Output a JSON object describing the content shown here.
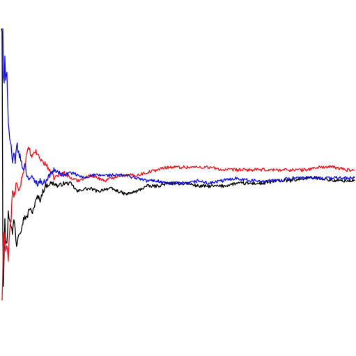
{
  "chart_data": {
    "type": "line",
    "title": "",
    "xlabel": "",
    "ylabel": "",
    "grid": false,
    "legend": "none",
    "xlim": [
      0,
      511
    ],
    "ylim": [
      -0.35,
      0.85
    ],
    "x": [
      0,
      1,
      2,
      3,
      4,
      5,
      6,
      8,
      10,
      12,
      14,
      16,
      18,
      20,
      22,
      25,
      28,
      31,
      34,
      37,
      40,
      44,
      48,
      52,
      56,
      60,
      64,
      70,
      76,
      82,
      90,
      100,
      110,
      120,
      130,
      140,
      150,
      160,
      170,
      180,
      195,
      210,
      225,
      240,
      255,
      270,
      285,
      300,
      320,
      340,
      360,
      380,
      400,
      420,
      440,
      460,
      480,
      500,
      511
    ],
    "series": [
      {
        "name": "black",
        "color": "#000000",
        "values": [
          0.8,
          0.79,
          0.05,
          -0.15,
          -0.02,
          0.1,
          0.02,
          0.0,
          0.12,
          0.1,
          0.08,
          0.04,
          0.1,
          0.06,
          0.0,
          0.05,
          0.06,
          0.09,
          0.11,
          0.1,
          0.14,
          0.12,
          0.15,
          0.18,
          0.17,
          0.2,
          0.22,
          0.23,
          0.23,
          0.22,
          0.23,
          0.23,
          0.2,
          0.21,
          0.21,
          0.2,
          0.21,
          0.21,
          0.2,
          0.19,
          0.2,
          0.22,
          0.22,
          0.23,
          0.23,
          0.23,
          0.22,
          0.22,
          0.22,
          0.23,
          0.23,
          0.23,
          0.24,
          0.24,
          0.25,
          0.25,
          0.24,
          0.24,
          0.24
        ]
      },
      {
        "name": "red",
        "color": "#e8141e",
        "values": [
          -0.2,
          -0.2,
          -0.1,
          0.05,
          0.0,
          0.05,
          -0.02,
          0.0,
          -0.05,
          0.06,
          0.1,
          0.2,
          0.18,
          0.2,
          0.24,
          0.19,
          0.23,
          0.27,
          0.3,
          0.34,
          0.36,
          0.32,
          0.35,
          0.34,
          0.32,
          0.31,
          0.3,
          0.28,
          0.25,
          0.26,
          0.27,
          0.25,
          0.24,
          0.25,
          0.26,
          0.25,
          0.24,
          0.25,
          0.26,
          0.26,
          0.26,
          0.27,
          0.28,
          0.29,
          0.29,
          0.29,
          0.29,
          0.29,
          0.28,
          0.28,
          0.28,
          0.28,
          0.28,
          0.28,
          0.28,
          0.29,
          0.29,
          0.28,
          0.28
        ]
      },
      {
        "name": "blue",
        "color": "#0d0dd8",
        "values": [
          0.8,
          0.8,
          0.8,
          0.62,
          0.6,
          0.7,
          0.61,
          0.65,
          0.45,
          0.4,
          0.36,
          0.3,
          0.34,
          0.3,
          0.38,
          0.34,
          0.32,
          0.28,
          0.3,
          0.26,
          0.25,
          0.25,
          0.24,
          0.23,
          0.24,
          0.23,
          0.24,
          0.26,
          0.28,
          0.27,
          0.26,
          0.27,
          0.26,
          0.25,
          0.26,
          0.26,
          0.26,
          0.26,
          0.26,
          0.26,
          0.25,
          0.24,
          0.24,
          0.23,
          0.23,
          0.23,
          0.24,
          0.23,
          0.24,
          0.25,
          0.24,
          0.24,
          0.24,
          0.25,
          0.25,
          0.25,
          0.25,
          0.25,
          0.25
        ]
      }
    ]
  }
}
